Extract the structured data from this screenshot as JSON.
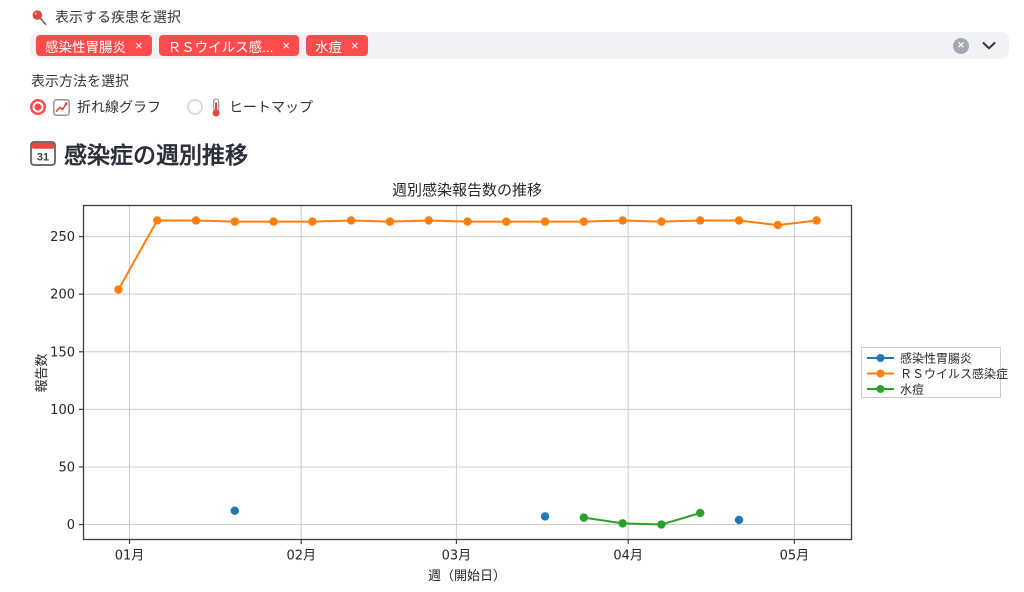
{
  "colors": {
    "accent": "#ff4b4b",
    "widget_background": "#f0f2f6",
    "text": "#31333f",
    "series_blue": "#1f77b4",
    "series_orange": "#ff7f0e",
    "series_green": "#2ca02c"
  },
  "disease_select": {
    "label": "表示する疾患を選択",
    "icon": "pushpin-icon",
    "tags": [
      "感染性胃腸炎",
      "ＲＳウイルス感...",
      "水痘"
    ],
    "remove_icon": "×",
    "clear_all_icon": "✕"
  },
  "method_select": {
    "label": "表示方法を選択",
    "options": [
      {
        "label": "折れ線グラフ",
        "icon": "line-chart-icon",
        "selected": true
      },
      {
        "label": "ヒートマップ",
        "icon": "thermometer-icon",
        "selected": false
      }
    ]
  },
  "heading": {
    "icon": "calendar-icon",
    "text": "感染症の週別推移"
  },
  "chart_data": {
    "type": "line",
    "title": "週別感染報告数の推移",
    "xlabel": "週（開始日）",
    "ylabel": "報告数",
    "grid": true,
    "legend_position": "outside-right",
    "y_ticks": [
      0,
      50,
      100,
      150,
      200,
      250
    ],
    "x_ticks": [
      {
        "label": "01月",
        "day": 2
      },
      {
        "label": "02月",
        "day": 33
      },
      {
        "label": "03月",
        "day": 61
      },
      {
        "label": "04月",
        "day": 92
      },
      {
        "label": "05月",
        "day": 122
      }
    ],
    "week_day_offsets": [
      0,
      7,
      14,
      21,
      28,
      35,
      42,
      49,
      56,
      63,
      70,
      77,
      84,
      91,
      98,
      105,
      112,
      119,
      126
    ],
    "xlim_days": [
      -6.3,
      132.3
    ],
    "ylim": [
      -13,
      277
    ],
    "series": [
      {
        "name": "感染性胃腸炎",
        "color": "#1f77b4",
        "values": [
          null,
          null,
          null,
          12,
          null,
          null,
          null,
          null,
          null,
          null,
          null,
          7,
          null,
          null,
          null,
          null,
          4,
          null,
          null
        ]
      },
      {
        "name": "ＲＳウイルス感染症",
        "color": "#ff7f0e",
        "values": [
          204,
          264,
          264,
          263,
          263,
          263,
          264,
          263,
          264,
          263,
          263,
          263,
          263,
          264,
          263,
          264,
          264,
          260,
          264
        ]
      },
      {
        "name": "水痘",
        "color": "#2ca02c",
        "values": [
          null,
          null,
          null,
          null,
          null,
          null,
          null,
          null,
          null,
          null,
          null,
          null,
          6,
          1,
          0,
          10,
          null,
          null,
          null
        ]
      }
    ]
  }
}
